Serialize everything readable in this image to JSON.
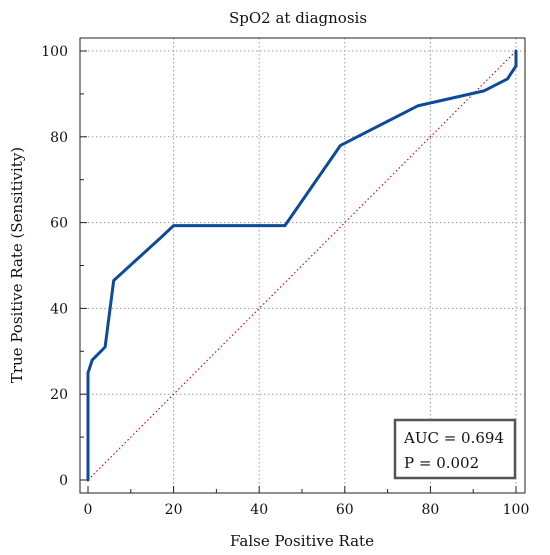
{
  "chart_data": {
    "type": "line",
    "title": "SpO2 at diagnosis",
    "xlabel": "False Positive Rate",
    "ylabel": "True Positive Rate (Sensitivity)",
    "xlim": [
      0,
      100
    ],
    "ylim": [
      0,
      100
    ],
    "x_ticks": [
      "0",
      "20",
      "40",
      "60",
      "80",
      "100"
    ],
    "y_ticks": [
      "0",
      "20",
      "40",
      "60",
      "80",
      "100"
    ],
    "grid": true,
    "series": [
      {
        "color": "#0d4a9a",
        "style": "solid",
        "points": [
          [
            0,
            0
          ],
          [
            0,
            25
          ],
          [
            1,
            28
          ],
          [
            4,
            31
          ],
          [
            6,
            46.5
          ],
          [
            17,
            56.5
          ],
          [
            20,
            59.3
          ],
          [
            46,
            59.3
          ],
          [
            59,
            78
          ],
          [
            77,
            87.2
          ],
          [
            92.5,
            90.7
          ],
          [
            98,
            93.5
          ],
          [
            100,
            96.5
          ],
          [
            100,
            100
          ]
        ]
      },
      {
        "color": "#cc0000",
        "style": "dotted",
        "points": [
          [
            0,
            0
          ],
          [
            100,
            100
          ]
        ]
      }
    ],
    "annotations": [
      "AUC = 0.694",
      "P = 0.002"
    ]
  }
}
